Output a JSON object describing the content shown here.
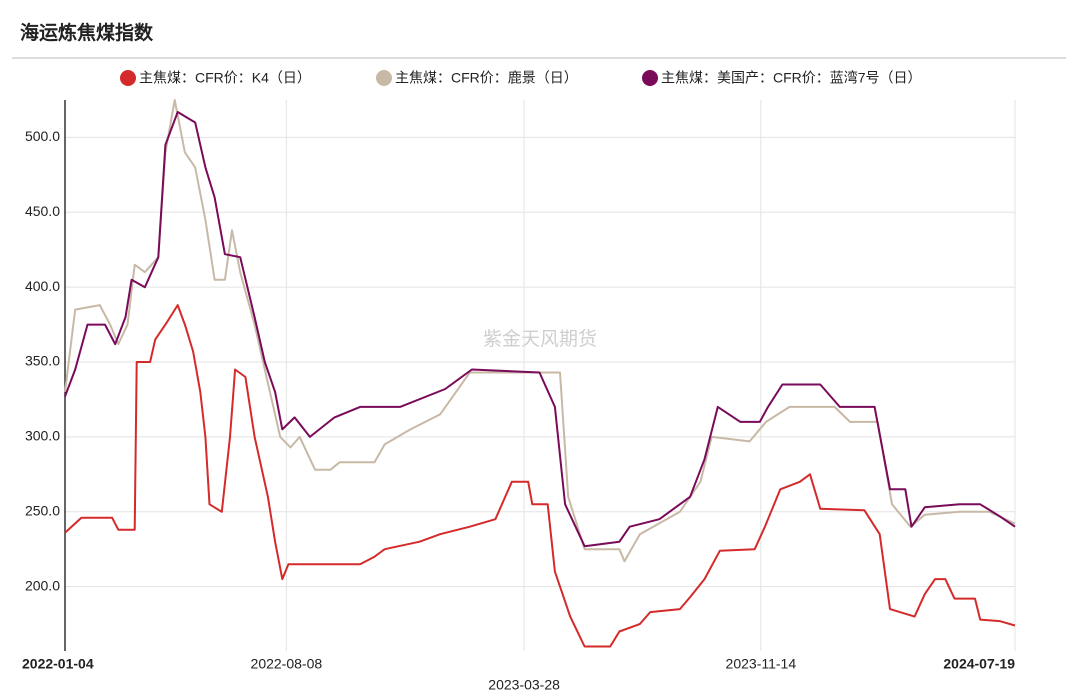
{
  "chart_data": {
    "type": "line",
    "title": "海运炼焦煤指数",
    "watermark": "紫金天风期货",
    "xlim": [
      "2022-01-04",
      "2024-07-19"
    ],
    "xticks": [
      "2022-01-04",
      "2022-08-08",
      "2023-03-28",
      "2023-11-14",
      "2024-07-19"
    ],
    "ylim": [
      157,
      525
    ],
    "yticks": [
      {
        "value": 200,
        "label": "200.0"
      },
      {
        "value": 250,
        "label": "250.0"
      },
      {
        "value": 300,
        "label": "300.0"
      },
      {
        "value": 350,
        "label": "350.0"
      },
      {
        "value": 400,
        "label": "400.0"
      },
      {
        "value": 450,
        "label": "450.0"
      },
      {
        "value": 500,
        "label": "500.0"
      }
    ],
    "grid": true,
    "legend": "top",
    "series": [
      {
        "name": "主焦煤：CFR价：K4（日）",
        "color": "#d42a2a",
        "x": [
          "2022-01-04",
          "2022-01-20",
          "2022-02-19",
          "2022-02-25",
          "2022-03-13",
          "2022-03-15",
          "2022-03-28",
          "2022-04-02",
          "2022-04-12",
          "2022-04-24",
          "2022-05-01",
          "2022-05-09",
          "2022-05-16",
          "2022-05-21",
          "2022-05-25",
          "2022-06-06",
          "2022-06-14",
          "2022-06-19",
          "2022-06-29",
          "2022-07-08",
          "2022-07-21",
          "2022-07-28",
          "2022-08-04",
          "2022-08-10",
          "2022-10-19",
          "2022-11-02",
          "2022-11-12",
          "2022-12-16",
          "2023-01-05",
          "2023-02-03",
          "2023-02-28",
          "2023-03-16",
          "2023-04-01",
          "2023-04-05",
          "2023-04-20",
          "2023-04-27",
          "2023-05-12",
          "2023-05-26",
          "2023-06-20",
          "2023-06-29",
          "2023-07-19",
          "2023-07-29",
          "2023-08-27",
          "2023-09-06",
          "2023-09-20",
          "2023-10-05",
          "2023-11-08",
          "2023-11-18",
          "2023-12-03",
          "2023-12-22",
          "2024-01-01",
          "2024-01-11",
          "2024-02-23",
          "2024-03-09",
          "2024-03-19",
          "2024-04-12",
          "2024-04-22",
          "2024-05-02",
          "2024-05-12",
          "2024-05-21",
          "2024-06-10",
          "2024-06-15",
          "2024-07-04",
          "2024-07-19"
        ],
        "values": [
          236,
          246,
          246,
          238,
          238,
          350,
          350,
          365,
          375,
          388,
          375,
          357,
          330,
          300,
          255,
          250,
          300,
          345,
          340,
          300,
          260,
          230,
          205,
          215,
          215,
          220,
          225,
          230,
          235,
          240,
          245,
          270,
          270,
          255,
          255,
          210,
          180,
          160,
          160,
          170,
          175,
          183,
          185,
          193,
          205,
          224,
          225,
          240,
          265,
          270,
          275,
          252,
          251,
          235,
          185,
          180,
          195,
          205,
          205,
          192,
          192,
          178,
          177,
          174
        ]
      },
      {
        "name": "主焦煤：CFR价：鹿景（日）",
        "color": "#c8b9a6",
        "x": [
          "2022-01-04",
          "2022-01-14",
          "2022-02-07",
          "2022-02-17",
          "2022-02-25",
          "2022-03-06",
          "2022-03-13",
          "2022-03-23",
          "2022-04-05",
          "2022-04-12",
          "2022-04-21",
          "2022-05-01",
          "2022-05-11",
          "2022-05-21",
          "2022-05-30",
          "2022-06-09",
          "2022-06-16",
          "2022-06-24",
          "2022-07-08",
          "2022-07-18",
          "2022-08-02",
          "2022-08-12",
          "2022-08-21",
          "2022-09-05",
          "2022-09-20",
          "2022-09-29",
          "2022-11-02",
          "2022-11-12",
          "2022-12-07",
          "2023-01-05",
          "2023-02-03",
          "2023-05-02",
          "2023-05-10",
          "2023-05-26",
          "2023-06-29",
          "2023-07-04",
          "2023-07-19",
          "2023-08-27",
          "2023-09-16",
          "2023-09-27",
          "2023-11-03",
          "2023-11-19",
          "2023-12-12",
          "2024-01-25",
          "2024-02-09",
          "2024-03-07",
          "2024-03-21",
          "2024-04-08",
          "2024-04-22",
          "2024-05-26",
          "2024-06-24",
          "2024-07-19"
        ],
        "values": [
          330,
          385,
          388,
          375,
          362,
          375,
          415,
          410,
          420,
          490,
          525,
          490,
          480,
          445,
          405,
          405,
          438,
          410,
          375,
          345,
          300,
          293,
          300,
          278,
          278,
          283,
          283,
          295,
          305,
          315,
          343,
          343,
          260,
          225,
          225,
          217,
          235,
          250,
          270,
          300,
          297,
          310,
          320,
          320,
          310,
          310,
          255,
          240,
          248,
          250,
          250,
          242
        ]
      },
      {
        "name": "主焦煤：美国产：CFR价：蓝湾7号（日）",
        "color": "#7a0a5a",
        "x": [
          "2022-01-04",
          "2022-01-14",
          "2022-01-26",
          "2022-02-12",
          "2022-02-22",
          "2022-03-04",
          "2022-03-10",
          "2022-03-23",
          "2022-04-05",
          "2022-04-12",
          "2022-04-24",
          "2022-05-11",
          "2022-05-21",
          "2022-05-30",
          "2022-06-09",
          "2022-06-24",
          "2022-07-08",
          "2022-07-18",
          "2022-07-28",
          "2022-08-04",
          "2022-08-16",
          "2022-08-31",
          "2022-09-24",
          "2022-10-19",
          "2022-11-27",
          "2023-01-10",
          "2023-02-05",
          "2023-04-12",
          "2023-04-27",
          "2023-05-07",
          "2023-05-26",
          "2023-06-29",
          "2023-07-09",
          "2023-08-07",
          "2023-09-06",
          "2023-09-20",
          "2023-10-03",
          "2023-10-25",
          "2023-11-13",
          "2023-11-21",
          "2023-12-05",
          "2024-01-11",
          "2024-01-30",
          "2024-03-04",
          "2024-03-19",
          "2024-04-03",
          "2024-04-09",
          "2024-04-22",
          "2024-05-26",
          "2024-06-15",
          "2024-07-04",
          "2024-07-19"
        ],
        "values": [
          327,
          345,
          375,
          375,
          362,
          380,
          405,
          400,
          420,
          495,
          517,
          510,
          480,
          460,
          422,
          420,
          380,
          350,
          330,
          305,
          313,
          300,
          313,
          320,
          320,
          332,
          345,
          343,
          320,
          255,
          227,
          230,
          240,
          245,
          260,
          285,
          320,
          310,
          310,
          320,
          335,
          335,
          320,
          320,
          265,
          265,
          240,
          253,
          255,
          255,
          247,
          240
        ]
      }
    ]
  }
}
